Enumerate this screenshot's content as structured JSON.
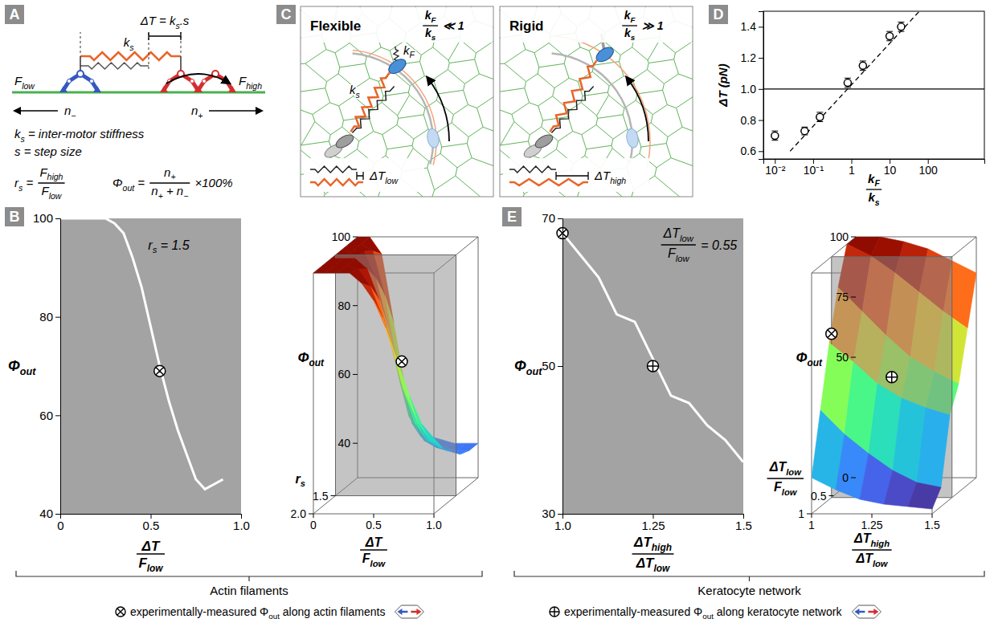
{
  "panel_letters": [
    "A",
    "B",
    "C",
    "D",
    "E"
  ],
  "panel_a": {
    "delta_t": [
      "ΔT = k",
      {
        "sub": "s"
      },
      ".s"
    ],
    "ks": [
      "k",
      {
        "sub": "s"
      }
    ],
    "f_low": [
      "F",
      {
        "sub": "low"
      }
    ],
    "f_high": [
      "F",
      {
        "sub": "high"
      }
    ],
    "n_minus": [
      "n",
      {
        "sub": "−"
      }
    ],
    "n_plus": [
      "n",
      {
        "sub": "+"
      }
    ],
    "def_ks": [
      "k",
      {
        "sub": "s"
      },
      " = inter-motor stiffness"
    ],
    "def_s": [
      "s = step size"
    ],
    "rs": {
      "lhs": [
        "r",
        {
          "sub": "s"
        },
        " = "
      ],
      "num": [
        "F",
        {
          "sub": "high"
        }
      ],
      "den": [
        "F",
        {
          "sub": "low"
        }
      ]
    },
    "phi": {
      "lhs": [
        "Φ",
        {
          "sub": "out"
        },
        " = "
      ],
      "num": [
        "n",
        {
          "sub": "+"
        }
      ],
      "den": [
        "n",
        {
          "sub": "+"
        },
        " + n",
        {
          "sub": "−"
        }
      ],
      "rhs": [
        " ×100%"
      ]
    }
  },
  "panel_c": {
    "boxes": [
      {
        "title": "Flexible",
        "ratio": {
          "num": [
            "k",
            {
              "sub": "F"
            }
          ],
          "den": [
            "k",
            {
              "sub": "s"
            }
          ],
          "rhs": [
            " ≪ 1"
          ]
        },
        "ks": [
          "k",
          {
            "sub": "s"
          }
        ],
        "kf": [
          "k",
          {
            "sub": "F"
          }
        ],
        "dt": [
          "ΔT",
          {
            "sub": "low"
          }
        ]
      },
      {
        "title": "Rigid",
        "ratio": {
          "num": [
            "k",
            {
              "sub": "F"
            }
          ],
          "den": [
            "k",
            {
              "sub": "s"
            }
          ],
          "rhs": [
            " ≫ 1"
          ]
        },
        "dt": [
          "ΔT",
          {
            "sub": "high"
          }
        ]
      }
    ]
  },
  "chart_data": [
    {
      "type": "line",
      "x_label": {
        "num": [
          "ΔT"
        ],
        "den": [
          "F",
          {
            "sub": "low"
          }
        ]
      },
      "y_label": [
        "Φ",
        {
          "sub": "out"
        }
      ],
      "annotations": [
        [
          "r",
          {
            "sub": "s"
          },
          " = 1.5"
        ]
      ],
      "xlim": [
        0,
        1
      ],
      "xticks": [
        0,
        0.5,
        {
          "value": 1,
          "label": "1.0"
        }
      ],
      "ylim": [
        40,
        100
      ],
      "yticks": [
        40,
        60,
        80,
        100
      ],
      "series": [
        {
          "type": "line",
          "color": "#ffffff",
          "x": [
            0,
            0.05,
            0.1,
            0.15,
            0.2,
            0.25,
            0.3,
            0.35,
            0.4,
            0.45,
            0.5,
            0.55,
            0.6,
            0.65,
            0.7,
            0.75,
            0.8,
            0.85,
            0.9
          ],
          "values": [
            100,
            100,
            100,
            100,
            100,
            100,
            99,
            97,
            92,
            86,
            78,
            70,
            63,
            57,
            52,
            47,
            45,
            46,
            47
          ]
        },
        {
          "type": "scatter",
          "marker": "otimes",
          "color": "#000000",
          "x": [
            0.55
          ],
          "values": [
            69
          ]
        }
      ]
    },
    {
      "type": "surface",
      "color": "turbo",
      "x_label": {
        "num": [
          "ΔT"
        ],
        "den": [
          "F",
          {
            "sub": "low"
          }
        ]
      },
      "y_label": [
        "r",
        {
          "sub": "s"
        }
      ],
      "z_label": [
        "Φ",
        {
          "sub": "out"
        }
      ],
      "xlim": [
        0,
        1
      ],
      "xticks": [
        0,
        0.5,
        {
          "value": 1,
          "label": "1.0"
        }
      ],
      "ylim": [
        1,
        2
      ],
      "yticks": [
        1.5,
        {
          "value": 2,
          "label": "2.0"
        }
      ],
      "zlim": [
        30,
        100
      ],
      "zticks": [
        40,
        60,
        80,
        100
      ],
      "x": [
        0,
        0.1,
        0.2,
        0.3,
        0.4,
        0.5,
        0.6,
        0.7,
        0.8,
        0.9,
        1
      ],
      "y": [
        1,
        1.2,
        1.4,
        1.6,
        1.8,
        2
      ],
      "z": [
        [
          100,
          100,
          95,
          75,
          55,
          45,
          42,
          41,
          40,
          40,
          40
        ],
        [
          100,
          100,
          98,
          85,
          65,
          50,
          44,
          42,
          41,
          40,
          40
        ],
        [
          100,
          100,
          100,
          92,
          78,
          62,
          50,
          45,
          43,
          42,
          41
        ],
        [
          100,
          100,
          100,
          97,
          88,
          75,
          62,
          52,
          47,
          45,
          44
        ],
        [
          100,
          100,
          100,
          99,
          94,
          85,
          74,
          62,
          54,
          49,
          47
        ],
        [
          100,
          100,
          100,
          100,
          97,
          92,
          84,
          74,
          64,
          56,
          52
        ]
      ],
      "slice": 1.5,
      "points": [
        {
          "x": 0.55,
          "y": 1.5,
          "z": 69,
          "marker": "otimes"
        }
      ]
    },
    {
      "type": "scatter",
      "log": "x",
      "x_label": {
        "num": [
          "k",
          {
            "sub": "F"
          }
        ],
        "den": [
          "k",
          {
            "sub": "s"
          }
        ]
      },
      "y_label": [
        "ΔT (pN)"
      ],
      "xlim": [
        0.005,
        3000
      ],
      "xticks": [
        {
          "value": 0.01,
          "label": "10⁻²"
        },
        {
          "value": 0.1,
          "label": "10⁻¹"
        },
        1,
        10,
        100
      ],
      "ylim": [
        0.55,
        1.5
      ],
      "yticks": [
        0.6,
        0.8,
        {
          "value": 1,
          "label": "1.0"
        },
        1.2,
        1.4
      ],
      "series": [
        {
          "type": "line",
          "color": "#000000",
          "x": [
            0.005,
            3000
          ],
          "values": [
            1,
            1
          ]
        },
        {
          "type": "line",
          "line_style": "dashed",
          "color": "#000000",
          "x": [
            0.025,
            60
          ],
          "values": [
            0.6,
            1.5
          ]
        },
        {
          "type": "scatter",
          "marker": "circle",
          "color": "#000000",
          "x": [
            0.01,
            0.06,
            0.15,
            0.8,
            2,
            10,
            20
          ],
          "values": [
            0.7,
            0.73,
            0.82,
            1.04,
            1.15,
            1.34,
            1.4
          ],
          "errors": [
            0.03,
            0.025,
            0.03,
            0.03,
            0.03,
            0.03,
            0.03
          ]
        }
      ]
    },
    {
      "type": "line",
      "x_label": {
        "num": [
          "ΔT",
          {
            "sub": "high"
          }
        ],
        "den": [
          "ΔT",
          {
            "sub": "low"
          }
        ]
      },
      "y_label": [
        "Φ",
        {
          "sub": "out"
        }
      ],
      "annotations": [
        {
          "num": [
            "ΔT",
            {
              "sub": "low"
            }
          ],
          "den": [
            "F",
            {
              "sub": "low"
            }
          ],
          "rhs": [
            " = 0.55"
          ]
        }
      ],
      "xlim": [
        1,
        1.5
      ],
      "xticks": [
        {
          "value": 1,
          "label": "1.0"
        },
        1.25,
        1.5
      ],
      "ylim": [
        30,
        70
      ],
      "yticks": [
        30,
        50,
        70
      ],
      "series": [
        {
          "type": "line",
          "color": "#ffffff",
          "x": [
            1,
            1.05,
            1.1,
            1.15,
            1.2,
            1.25,
            1.3,
            1.35,
            1.4,
            1.45,
            1.5
          ],
          "values": [
            68,
            65,
            62,
            57,
            56,
            51,
            46,
            45,
            42,
            40,
            37
          ]
        },
        {
          "type": "scatter",
          "marker": "otimes",
          "color": "#000000",
          "x": [
            1
          ],
          "values": [
            68
          ]
        },
        {
          "type": "scatter",
          "marker": "oplus",
          "color": "#000000",
          "x": [
            1.25
          ],
          "values": [
            50
          ]
        }
      ]
    },
    {
      "type": "surface",
      "color": "turbo",
      "x_label": {
        "num": [
          "ΔT",
          {
            "sub": "high"
          }
        ],
        "den": [
          "ΔT",
          {
            "sub": "low"
          }
        ]
      },
      "y_label": {
        "num": [
          "ΔT",
          {
            "sub": "low"
          }
        ],
        "den": [
          "F",
          {
            "sub": "low"
          }
        ]
      },
      "z_label": [
        "Φ",
        {
          "sub": "out"
        }
      ],
      "xlim": [
        1,
        1.5
      ],
      "xticks": [
        1,
        1.25,
        1.5
      ],
      "ylim": [
        0,
        1
      ],
      "yticks": [
        0.5,
        1
      ],
      "zlim": [
        0,
        100
      ],
      "zticks": [
        0,
        50,
        75,
        100
      ],
      "x": [
        1,
        1.1,
        1.2,
        1.3,
        1.4,
        1.5
      ],
      "y": [
        0,
        0.2,
        0.4,
        0.6,
        0.8,
        1
      ],
      "z": [
        [
          100,
          100,
          98,
          95,
          90,
          85
        ],
        [
          100,
          95,
          88,
          80,
          72,
          65
        ],
        [
          85,
          75,
          65,
          56,
          50,
          45
        ],
        [
          65,
          57,
          48,
          42,
          38,
          35
        ],
        [
          40,
          30,
          22,
          15,
          10,
          8
        ],
        [
          15,
          10,
          6,
          4,
          3,
          2
        ]
      ],
      "slice": 0.55,
      "points": [
        {
          "x": 1,
          "y": 0.55,
          "z": 68,
          "marker": "otimes"
        },
        {
          "x": 1.25,
          "y": 0.55,
          "z": 50,
          "marker": "oplus"
        }
      ]
    }
  ],
  "footer": {
    "groups": [
      "Actin filaments",
      "Keratocyte network"
    ],
    "legend": [
      {
        "marker": "otimes",
        "text": [
          "experimentally-measured Φ",
          {
            "sub": "out"
          },
          " along actin filaments"
        ]
      },
      {
        "marker": "oplus",
        "text": [
          "experimentally-measured Φ",
          {
            "sub": "out"
          },
          " along keratocyte network"
        ]
      }
    ]
  }
}
